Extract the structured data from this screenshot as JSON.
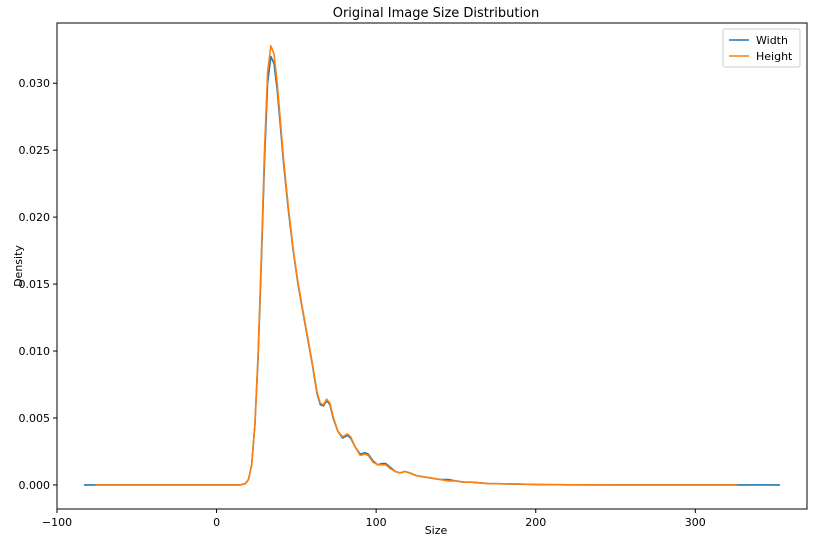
{
  "chart_data": {
    "type": "line",
    "title": "Original Image Size Distribution",
    "xlabel": "Size",
    "ylabel": "Density",
    "xlim": [
      -100,
      370
    ],
    "ylim": [
      -0.0018,
      0.0345
    ],
    "xticks": [
      -100,
      0,
      100,
      200,
      300
    ],
    "xtick_labels": [
      "−100",
      "0",
      "100",
      "200",
      "300"
    ],
    "yticks": [
      0.0,
      0.005,
      0.01,
      0.015,
      0.02,
      0.025,
      0.03
    ],
    "ytick_labels": [
      "0.000",
      "0.005",
      "0.010",
      "0.015",
      "0.020",
      "0.025",
      "0.030"
    ],
    "grid": false,
    "legend_position": "top-right",
    "colors": {
      "Width": "#1f77b4",
      "Height": "#ff7f0e"
    },
    "series": [
      {
        "name": "Width",
        "points": [
          [
            -83,
            0
          ],
          [
            0,
            0
          ],
          [
            15,
            0
          ],
          [
            18,
            0.0001
          ],
          [
            20,
            0.0004
          ],
          [
            22,
            0.0015
          ],
          [
            24,
            0.0045
          ],
          [
            26,
            0.0095
          ],
          [
            28,
            0.0165
          ],
          [
            30,
            0.024
          ],
          [
            32,
            0.03
          ],
          [
            34,
            0.032
          ],
          [
            36,
            0.0315
          ],
          [
            38,
            0.0295
          ],
          [
            40,
            0.0268
          ],
          [
            42,
            0.024
          ],
          [
            45,
            0.0205
          ],
          [
            48,
            0.0175
          ],
          [
            51,
            0.015
          ],
          [
            54,
            0.013
          ],
          [
            57,
            0.011
          ],
          [
            60,
            0.009
          ],
          [
            63,
            0.0068
          ],
          [
            65,
            0.006
          ],
          [
            67,
            0.0059
          ],
          [
            69,
            0.0063
          ],
          [
            71,
            0.006
          ],
          [
            73,
            0.005
          ],
          [
            76,
            0.004
          ],
          [
            79,
            0.0035
          ],
          [
            82,
            0.0037
          ],
          [
            84,
            0.0035
          ],
          [
            87,
            0.0028
          ],
          [
            90,
            0.0023
          ],
          [
            93,
            0.0024
          ],
          [
            95,
            0.0023
          ],
          [
            98,
            0.0018
          ],
          [
            101,
            0.0015
          ],
          [
            104,
            0.0016
          ],
          [
            106,
            0.0016
          ],
          [
            109,
            0.0013
          ],
          [
            112,
            0.001
          ],
          [
            115,
            0.0009
          ],
          [
            118,
            0.001
          ],
          [
            121,
            0.0009
          ],
          [
            125,
            0.0007
          ],
          [
            130,
            0.0006
          ],
          [
            135,
            0.0005
          ],
          [
            140,
            0.0004
          ],
          [
            145,
            0.0004
          ],
          [
            150,
            0.0003
          ],
          [
            155,
            0.0002
          ],
          [
            160,
            0.0002
          ],
          [
            170,
            0.0001
          ],
          [
            180,
            8e-05
          ],
          [
            190,
            5e-05
          ],
          [
            200,
            3e-05
          ],
          [
            220,
            1e-05
          ],
          [
            250,
            0
          ],
          [
            300,
            0
          ],
          [
            353,
            0
          ]
        ]
      },
      {
        "name": "Height",
        "points": [
          [
            -76,
            0
          ],
          [
            0,
            0
          ],
          [
            15,
            0
          ],
          [
            18,
            0.0001
          ],
          [
            20,
            0.0004
          ],
          [
            22,
            0.0015
          ],
          [
            24,
            0.0045
          ],
          [
            26,
            0.0098
          ],
          [
            28,
            0.017
          ],
          [
            30,
            0.0248
          ],
          [
            32,
            0.0308
          ],
          [
            34,
            0.0328
          ],
          [
            36,
            0.0322
          ],
          [
            38,
            0.03
          ],
          [
            40,
            0.0272
          ],
          [
            42,
            0.0243
          ],
          [
            45,
            0.0207
          ],
          [
            48,
            0.0176
          ],
          [
            51,
            0.0151
          ],
          [
            54,
            0.0131
          ],
          [
            57,
            0.0111
          ],
          [
            60,
            0.0091
          ],
          [
            63,
            0.0069
          ],
          [
            65,
            0.0061
          ],
          [
            67,
            0.006
          ],
          [
            69,
            0.0064
          ],
          [
            71,
            0.0061
          ],
          [
            73,
            0.0051
          ],
          [
            76,
            0.004
          ],
          [
            79,
            0.0036
          ],
          [
            82,
            0.0038
          ],
          [
            84,
            0.0036
          ],
          [
            87,
            0.0028
          ],
          [
            90,
            0.0022
          ],
          [
            93,
            0.0023
          ],
          [
            95,
            0.0022
          ],
          [
            98,
            0.0017
          ],
          [
            101,
            0.0015
          ],
          [
            104,
            0.0015
          ],
          [
            106,
            0.0015
          ],
          [
            109,
            0.0012
          ],
          [
            112,
            0.001
          ],
          [
            115,
            0.0009
          ],
          [
            118,
            0.001
          ],
          [
            121,
            0.0009
          ],
          [
            125,
            0.0007
          ],
          [
            130,
            0.0006
          ],
          [
            135,
            0.0005
          ],
          [
            140,
            0.0004
          ],
          [
            145,
            0.0003
          ],
          [
            150,
            0.0003
          ],
          [
            155,
            0.0002
          ],
          [
            160,
            0.0002
          ],
          [
            170,
            0.0001
          ],
          [
            180,
            8e-05
          ],
          [
            190,
            6e-05
          ],
          [
            200,
            3e-05
          ],
          [
            220,
            1e-05
          ],
          [
            250,
            0
          ],
          [
            300,
            0
          ],
          [
            326,
            0
          ]
        ]
      }
    ]
  }
}
